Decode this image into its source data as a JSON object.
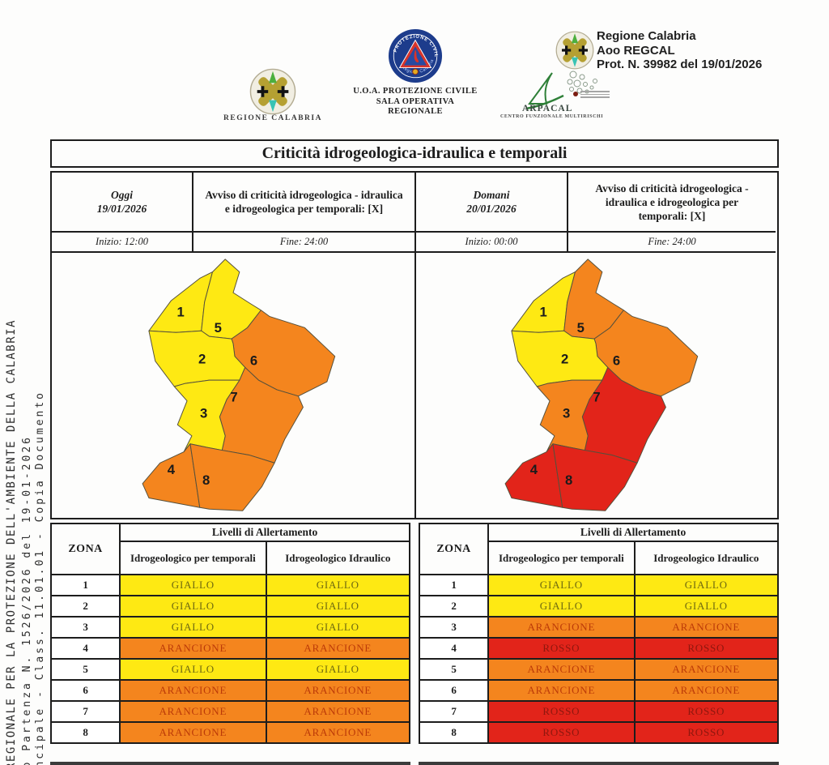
{
  "header": {
    "regione_caption": "REGIONE CALABRIA",
    "pc_caption1": "U.O.A. PROTEZIONE CIVILE",
    "pc_caption2": "SALA OPERATIVA REGIONALE",
    "pc_ring_top": "PROTEZIONE CIVILE",
    "pc_ring_bottom": "Regione Calabria",
    "protocol": {
      "line1": "Regione Calabria",
      "line2": "Aoo REGCAL",
      "line3": "Prot. N. 39982 del 19/01/2026"
    },
    "arpacal": {
      "name": "ARPACAL",
      "caption": "CENTRO FUNZIONALE MULTIRISCHI"
    }
  },
  "sidebar_vertical_text": {
    "line1": "REGIONALE PER LA PROTEZIONE DELL'AMBIENTE DELLA CALABRIA",
    "line2": "o Partenza N. 1526/2026 del 19-01-2026",
    "line3": "ncipale - Class. 11.01.01 - Copia Documento"
  },
  "bulletin": {
    "title": "Criticità idrogeologica-idraulica e temporali",
    "days": [
      {
        "day_label": "Oggi",
        "date": "19/01/2026",
        "avviso": "Avviso di criticità idrogeologica - idraulica e idrogeologica per temporali: [X]",
        "inizio": "Inizio: 12:00",
        "fine": "Fine: 24:00"
      },
      {
        "day_label": "Domani",
        "date": "20/01/2026",
        "avviso": "Avviso di criticità idrogeologica - idraulica e idrogeologica per temporali: [X]",
        "inizio": "Inizio: 00:00",
        "fine": "Fine: 24:00"
      }
    ]
  },
  "tables": {
    "zona_header": "ZONA",
    "livelli_header": "Livelli di Allertamento",
    "col_temporali": "Idrogeologico per temporali",
    "col_idraulico": "Idrogeologico Idraulico"
  },
  "alert_colors": {
    "GIALLO": {
      "bg": "#FEE913",
      "text": "#6E6910"
    },
    "ARANCIONE": {
      "bg": "#F4851E",
      "text": "#BC3A08"
    },
    "ROSSO": {
      "bg": "#E2241A",
      "text": "#8E170E"
    }
  },
  "alerts": {
    "today": [
      {
        "zona": "1",
        "temporali": "GIALLO",
        "idraulico": "GIALLO"
      },
      {
        "zona": "2",
        "temporali": "GIALLO",
        "idraulico": "GIALLO"
      },
      {
        "zona": "3",
        "temporali": "GIALLO",
        "idraulico": "GIALLO"
      },
      {
        "zona": "4",
        "temporali": "ARANCIONE",
        "idraulico": "ARANCIONE"
      },
      {
        "zona": "5",
        "temporali": "GIALLO",
        "idraulico": "GIALLO"
      },
      {
        "zona": "6",
        "temporali": "ARANCIONE",
        "idraulico": "ARANCIONE"
      },
      {
        "zona": "7",
        "temporali": "ARANCIONE",
        "idraulico": "ARANCIONE"
      },
      {
        "zona": "8",
        "temporali": "ARANCIONE",
        "idraulico": "ARANCIONE"
      }
    ],
    "tomorrow": [
      {
        "zona": "1",
        "temporali": "GIALLO",
        "idraulico": "GIALLO"
      },
      {
        "zona": "2",
        "temporali": "GIALLO",
        "idraulico": "GIALLO"
      },
      {
        "zona": "3",
        "temporali": "ARANCIONE",
        "idraulico": "ARANCIONE"
      },
      {
        "zona": "4",
        "temporali": "ROSSO",
        "idraulico": "ROSSO"
      },
      {
        "zona": "5",
        "temporali": "ARANCIONE",
        "idraulico": "ARANCIONE"
      },
      {
        "zona": "6",
        "temporali": "ARANCIONE",
        "idraulico": "ARANCIONE"
      },
      {
        "zona": "7",
        "temporali": "ROSSO",
        "idraulico": "ROSSO"
      },
      {
        "zona": "8",
        "temporali": "ROSSO",
        "idraulico": "ROSSO"
      }
    ]
  }
}
